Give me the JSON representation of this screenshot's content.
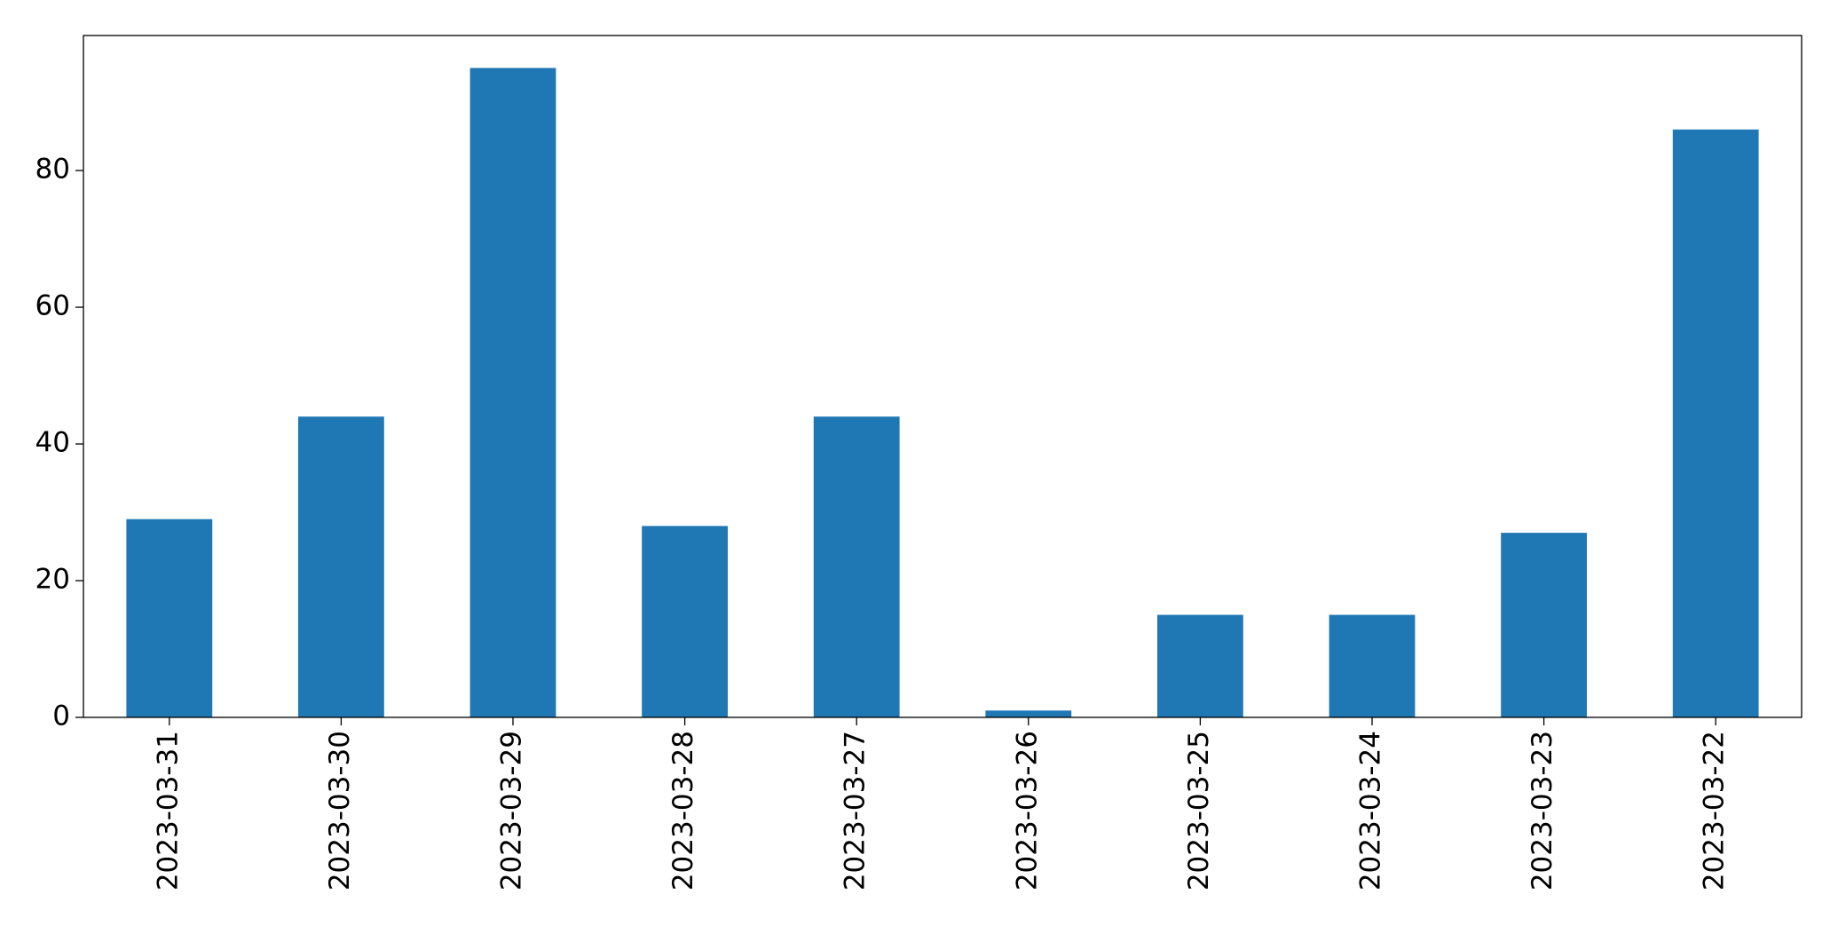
{
  "chart_data": {
    "type": "bar",
    "categories": [
      "2023-03-31",
      "2023-03-30",
      "2023-03-29",
      "2023-03-28",
      "2023-03-27",
      "2023-03-26",
      "2023-03-25",
      "2023-03-24",
      "2023-03-23",
      "2023-03-22"
    ],
    "values": [
      29,
      44,
      95,
      28,
      44,
      1,
      15,
      15,
      27,
      86
    ],
    "color": "#1f77b4",
    "ylim": [
      0,
      99.75
    ],
    "yticks": [
      0,
      20,
      40,
      60,
      80
    ],
    "grid": false
  }
}
